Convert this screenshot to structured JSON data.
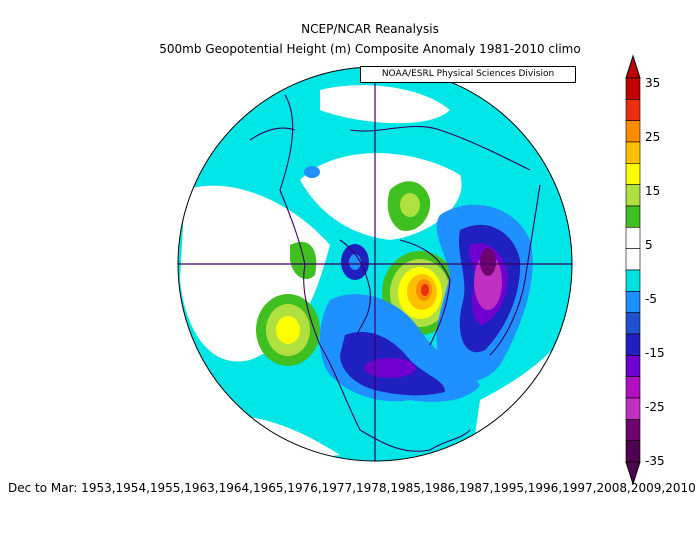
{
  "header": {
    "title": "NCEP/NCAR Reanalysis",
    "subtitle": "500mb Geopotential Height (m) Composite Anomaly 1981-2010 climo",
    "credit": "NOAA/ESRL Physical Sciences Division"
  },
  "footer": {
    "label": "Dec to Mar: 1953,1954,1955,1963,1964,1965,1976,1977,1978,1985,1986,1987,1995,1996,1997,2008,2009,2010"
  },
  "colorbar": {
    "labels": [
      "35",
      "25",
      "15",
      "5",
      "-5",
      "-15",
      "-25",
      "-35"
    ],
    "colors": [
      "#c00000",
      "#e83010",
      "#ff8c00",
      "#ffc000",
      "#ffff00",
      "#b0e040",
      "#40c020",
      "#ffffff",
      "#ffffff",
      "#00e0e0",
      "#1e90ff",
      "#1e50d0",
      "#2020c0",
      "#7000d0",
      "#b010c0",
      "#c030c0",
      "#700070",
      "#500050"
    ]
  },
  "map": {
    "projection": "north polar stereographic",
    "background_color": "#00e5e5",
    "positive_colors": {
      "green": "#40c020",
      "light_green": "#b0e040",
      "yellow": "#ffff00",
      "gold": "#ffc000",
      "orange": "#ff8c00",
      "red": "#e83010"
    },
    "negative_colors": {
      "blue": "#1e90ff",
      "mid_blue": "#2020c0",
      "purple": "#7000d0",
      "magenta": "#c030c0",
      "dark_purple": "#700070"
    }
  }
}
